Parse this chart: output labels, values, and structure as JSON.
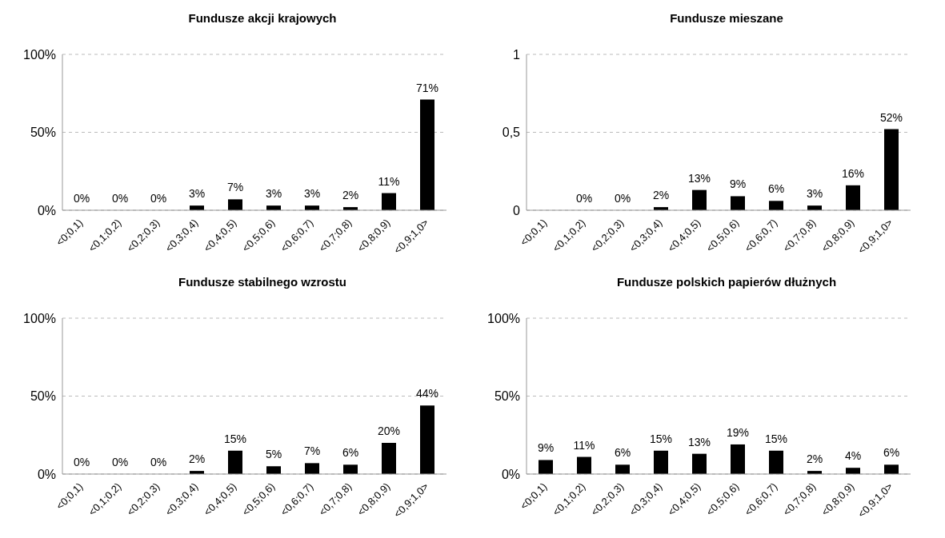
{
  "chart_data": [
    {
      "type": "bar",
      "title": "Fundusze akcji krajowych",
      "categories": [
        "<0;0,1)",
        "<0,1;0,2)",
        "<0,2;0,3)",
        "<0,3;0,4)",
        "<0,4;0,5)",
        "<0,5;0,6)",
        "<0,6;0,7)",
        "<0,7;0,8)",
        "<0,8;0,9)",
        "<0,9;1,0>"
      ],
      "values": [
        0,
        0,
        0,
        3,
        7,
        3,
        3,
        2,
        11,
        71
      ],
      "value_labels": [
        "0%",
        "0%",
        "0%",
        "3%",
        "7%",
        "3%",
        "3%",
        "2%",
        "11%",
        "71%"
      ],
      "color": "#000000",
      "ylim": [
        0,
        100
      ],
      "yticks": [
        {
          "value": 0,
          "label": "0%"
        },
        {
          "value": 50,
          "label": "50%"
        },
        {
          "value": 100,
          "label": "100%"
        }
      ],
      "grid": "y",
      "legend": false
    },
    {
      "type": "bar",
      "title": "Fundusze mieszane",
      "categories": [
        "<0;0,1)",
        "<0,1;0,2)",
        "<0,2;0,3)",
        "<0,3;0,4)",
        "<0,4;0,5)",
        "<0,5;0,6)",
        "<0,6;0,7)",
        "<0,7;0,8)",
        "<0,8;0,9)",
        "<0,9;1,0>"
      ],
      "values": [
        0,
        0,
        0,
        0.02,
        0.13,
        0.09,
        0.06,
        0.03,
        0.16,
        0.52
      ],
      "value_labels": [
        null,
        "0%",
        "0%",
        "2%",
        "13%",
        "9%",
        "6%",
        "3%",
        "16%",
        "52%"
      ],
      "color": "#000000",
      "ylim": [
        0,
        1
      ],
      "yticks": [
        {
          "value": 0,
          "label": "0"
        },
        {
          "value": 0.5,
          "label": "0,5"
        },
        {
          "value": 1,
          "label": "1"
        }
      ],
      "grid": "y",
      "legend": false
    },
    {
      "type": "bar",
      "title": "Fundusze stabilnego wzrostu",
      "categories": [
        "<0;0,1)",
        "<0,1;0,2)",
        "<0,2;0,3)",
        "<0,3;0,4)",
        "<0,4;0,5)",
        "<0,5;0,6)",
        "<0,6;0,7)",
        "<0,7;0,8)",
        "<0,8;0,9)",
        "<0,9;1,0>"
      ],
      "values": [
        0,
        0,
        0,
        2,
        15,
        5,
        7,
        6,
        20,
        44
      ],
      "value_labels": [
        "0%",
        "0%",
        "0%",
        "2%",
        "15%",
        "5%",
        "7%",
        "6%",
        "20%",
        "44%"
      ],
      "color": "#000000",
      "ylim": [
        0,
        100
      ],
      "yticks": [
        {
          "value": 0,
          "label": "0%"
        },
        {
          "value": 50,
          "label": "50%"
        },
        {
          "value": 100,
          "label": "100%"
        }
      ],
      "grid": "y",
      "legend": false
    },
    {
      "type": "bar",
      "title": "Fundusze polskich papierów dłużnych",
      "categories": [
        "<0;0,1)",
        "<0,1;0,2)",
        "<0,2;0,3)",
        "<0,3;0,4)",
        "<0,4;0,5)",
        "<0,5;0,6)",
        "<0,6;0,7)",
        "<0,7;0,8)",
        "<0,8;0,9)",
        "<0,9;1,0>"
      ],
      "values": [
        9,
        11,
        6,
        15,
        13,
        19,
        15,
        2,
        4,
        6
      ],
      "value_labels": [
        "9%",
        "11%",
        "6%",
        "15%",
        "13%",
        "19%",
        "15%",
        "2%",
        "4%",
        "6%"
      ],
      "color": "#000000",
      "ylim": [
        0,
        100
      ],
      "yticks": [
        {
          "value": 0,
          "label": "0%"
        },
        {
          "value": 50,
          "label": "50%"
        },
        {
          "value": 100,
          "label": "100%"
        }
      ],
      "grid": "y",
      "legend": false
    }
  ]
}
